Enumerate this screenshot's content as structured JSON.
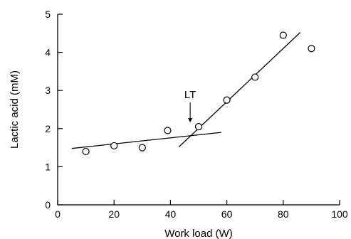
{
  "chart_data": {
    "type": "scatter",
    "title": "",
    "xlabel": "Work load (W)",
    "ylabel": "Lactic acid (mM)",
    "xlim": [
      0,
      100
    ],
    "ylim": [
      0,
      5
    ],
    "x_ticks": [
      0,
      20,
      40,
      60,
      80,
      100
    ],
    "y_ticks": [
      0,
      1,
      2,
      3,
      4,
      5
    ],
    "x_tick_labels": [
      "0",
      "20",
      "40",
      "60",
      "80",
      "100"
    ],
    "y_tick_labels": [
      "0",
      "1",
      "2",
      "3",
      "4",
      "5"
    ],
    "grid": false,
    "legend": "none",
    "series": [
      {
        "marker": "open-circle",
        "points": [
          {
            "x": 10,
            "y": 1.4
          },
          {
            "x": 20,
            "y": 1.55
          },
          {
            "x": 30,
            "y": 1.5
          },
          {
            "x": 39,
            "y": 1.95
          },
          {
            "x": 50,
            "y": 2.05
          },
          {
            "x": 60,
            "y": 2.75
          },
          {
            "x": 70,
            "y": 3.35
          },
          {
            "x": 80,
            "y": 4.45
          },
          {
            "x": 90,
            "y": 4.1
          }
        ]
      }
    ],
    "fit_lines": [
      {
        "from": {
          "x": 5,
          "y": 1.48
        },
        "to": {
          "x": 58,
          "y": 1.9
        }
      },
      {
        "from": {
          "x": 43,
          "y": 1.52
        },
        "to": {
          "x": 86,
          "y": 4.52
        }
      }
    ],
    "annotations": [
      {
        "text": "LT",
        "arrow_to": {
          "x": 47,
          "y": 2.05
        }
      }
    ]
  }
}
